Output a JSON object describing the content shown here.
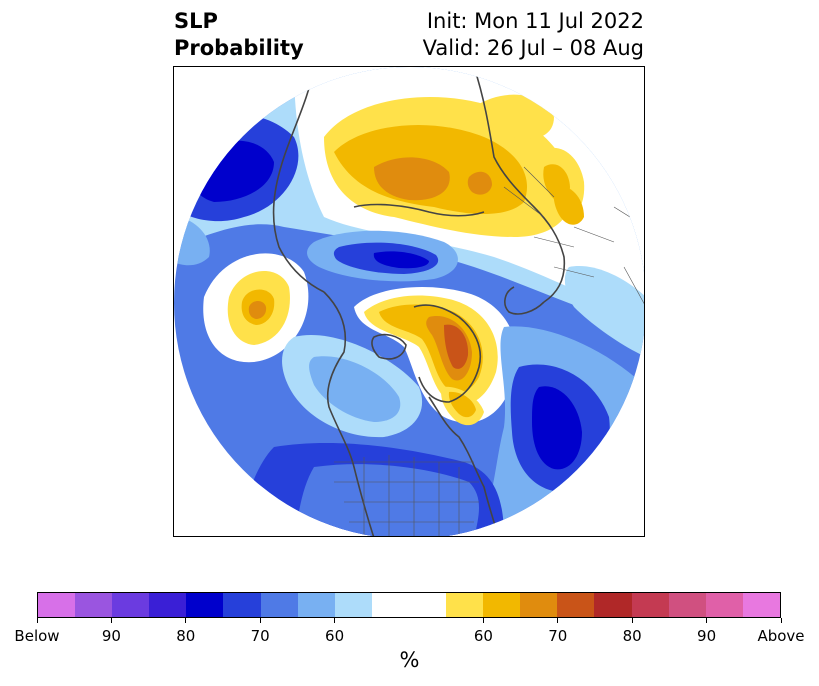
{
  "title": {
    "left_line1": "SLP",
    "left_line2": "Probability",
    "right_line1": "Init: Mon 11 Jul 2022",
    "right_line2": "Valid: 26 Jul – 08 Aug"
  },
  "colorbar": {
    "colors": [
      "#d770e8",
      "#9a55e0",
      "#6b3be0",
      "#3a1fd6",
      "#0000cc",
      "#2640da",
      "#4f7ae6",
      "#78b0f2",
      "#addcfa",
      "#ffffff",
      "#ffffff",
      "#ffe14a",
      "#f2b800",
      "#e08c0e",
      "#c95418",
      "#b02828",
      "#c43a52",
      "#d05080",
      "#e060a8",
      "#e878e0"
    ],
    "tick_labels": [
      "Below",
      "90",
      "80",
      "70",
      "60",
      "60",
      "70",
      "80",
      "90",
      "Above"
    ],
    "unit_label": "%"
  },
  "map": {
    "projection": "north-polar-stereographic",
    "palette": {
      "blue_light": "#addcfa",
      "blue_mid": "#78b0f2",
      "blue": "#4f7ae6",
      "blue_strong": "#2640da",
      "blue_deep": "#0000cc",
      "yellow": "#ffe14a",
      "gold": "#f2b800",
      "orange": "#e08c0e",
      "red_orange": "#c95418",
      "coast": "#444444"
    }
  }
}
